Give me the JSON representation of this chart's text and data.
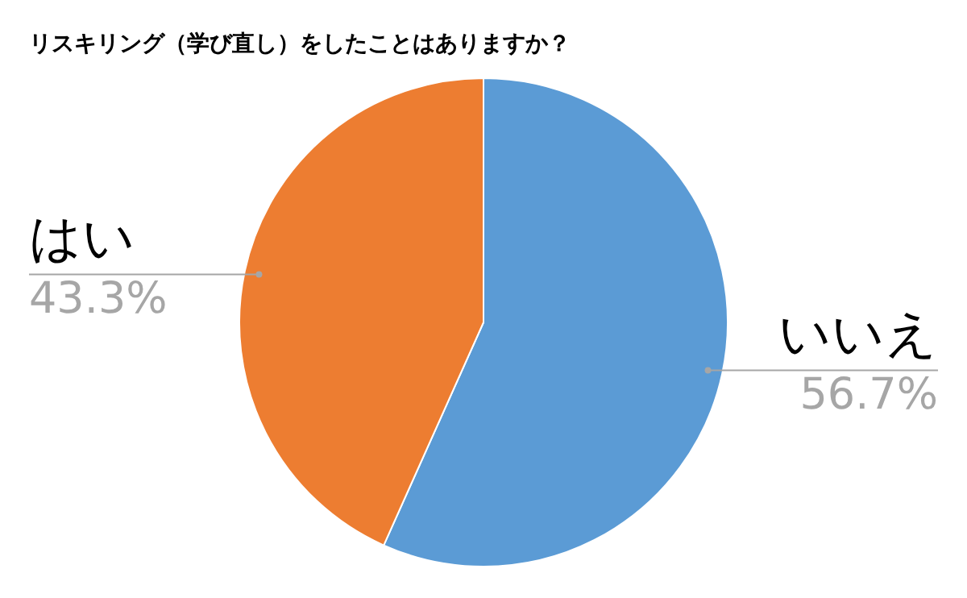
{
  "chart_data": {
    "type": "pie",
    "title": "リスキリング（学び直し）をしたことはありますか？",
    "categories": [
      "いいえ",
      "はい"
    ],
    "values": [
      56.7,
      43.3
    ],
    "value_labels": [
      "56.7%",
      "43.3%"
    ],
    "colors": [
      "#5b9bd5",
      "#ed7d31"
    ]
  }
}
